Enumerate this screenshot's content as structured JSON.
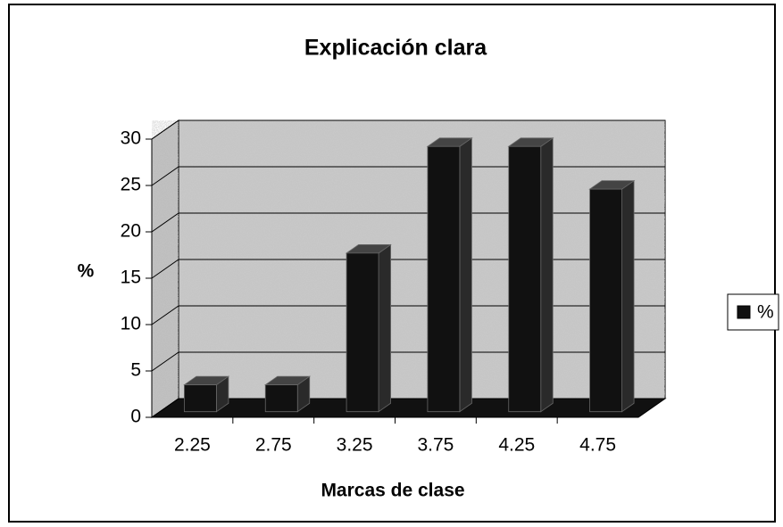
{
  "chart_data": {
    "type": "bar",
    "title": "Explicación clara",
    "x_label": "Marcas de clase",
    "y_label": "%",
    "categories": [
      "2.25",
      "2.75",
      "3.25",
      "3.75",
      "4.25",
      "4.75"
    ],
    "series": [
      {
        "name": "%",
        "color": "#111111",
        "values": [
          2.9,
          2.9,
          17.1,
          28.6,
          28.6,
          24
        ]
      }
    ],
    "ylim": [
      0,
      30
    ],
    "yticks": [
      0,
      5,
      10,
      15,
      20,
      25,
      30
    ],
    "grid": true,
    "legend": "right"
  }
}
